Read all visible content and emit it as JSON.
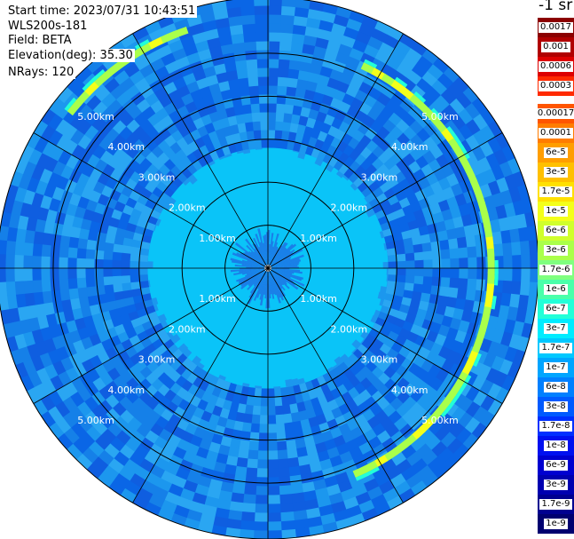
{
  "info": {
    "start_time": "Start time: 2023/07/31 10:43:51",
    "device": "WLS200s-181",
    "field": "Field: BETA",
    "elevation": "Elevation(deg): 35.30",
    "nrays": "NRays: 120"
  },
  "colorbar": {
    "units": "-1 sr",
    "labels": [
      "0.0017",
      "0.001",
      "0.0006",
      "0.0003",
      "0.00017",
      "0.0001",
      "6e-5",
      "3e-5",
      "1.7e-5",
      "1e-5",
      "6e-6",
      "3e-6",
      "1.7e-6",
      "1e-6",
      "6e-7",
      "3e-7",
      "1.7e-7",
      "1e-7",
      "6e-8",
      "3e-8",
      "1.7e-8",
      "1e-8",
      "6e-9",
      "3e-9",
      "1.7e-9",
      "1e-9"
    ],
    "colors": [
      "#8b0000",
      "#b00000",
      "#dd0000",
      "#ff2a00",
      "#ff5500",
      "#ff7c00",
      "#ff9e00",
      "#ffc000",
      "#ffe000",
      "#f4ff1a",
      "#d0ff2c",
      "#aaff4a",
      "#7fff7f",
      "#4affaa",
      "#22ffd8",
      "#00ecff",
      "#00c8ff",
      "#00a5ff",
      "#0080ff",
      "#005aff",
      "#0030ff",
      "#0010f0",
      "#0000d0",
      "#0000b0",
      "#000090",
      "#000070"
    ]
  },
  "chart_data": {
    "type": "heatmap",
    "projection": "polar PPI scan",
    "field": "BETA",
    "units": "-1 sr",
    "scale": "logarithmic",
    "n_rays": 120,
    "elevation_deg": 35.3,
    "range_rings_km": [
      1.0,
      2.0,
      3.0,
      4.0,
      5.0
    ],
    "range_ring_labels": [
      "1.00km",
      "2.00km",
      "3.00km",
      "4.00km",
      "5.00km"
    ],
    "max_range_km": 6.3,
    "bands": [
      {
        "from_km": 0.0,
        "to_km": 0.7,
        "beta": 1.7e-08,
        "description": "central blue core"
      },
      {
        "from_km": 0.7,
        "to_km": 2.8,
        "beta": 1e-07,
        "description": "uniform cyan disk"
      },
      {
        "from_km": 2.8,
        "to_km": 6.3,
        "beta_range": [
          1.7e-08,
          1e-07
        ],
        "description": "speckled blue outer ring"
      }
    ],
    "features": [
      {
        "name": "arc east",
        "range_km": 5.2,
        "azimuth_deg": [
          25,
          155
        ],
        "beta": 1e-06
      },
      {
        "name": "arc northwest",
        "range_km": 5.85,
        "azimuth_deg": [
          308,
          340
        ],
        "beta": 1e-06
      }
    ]
  }
}
